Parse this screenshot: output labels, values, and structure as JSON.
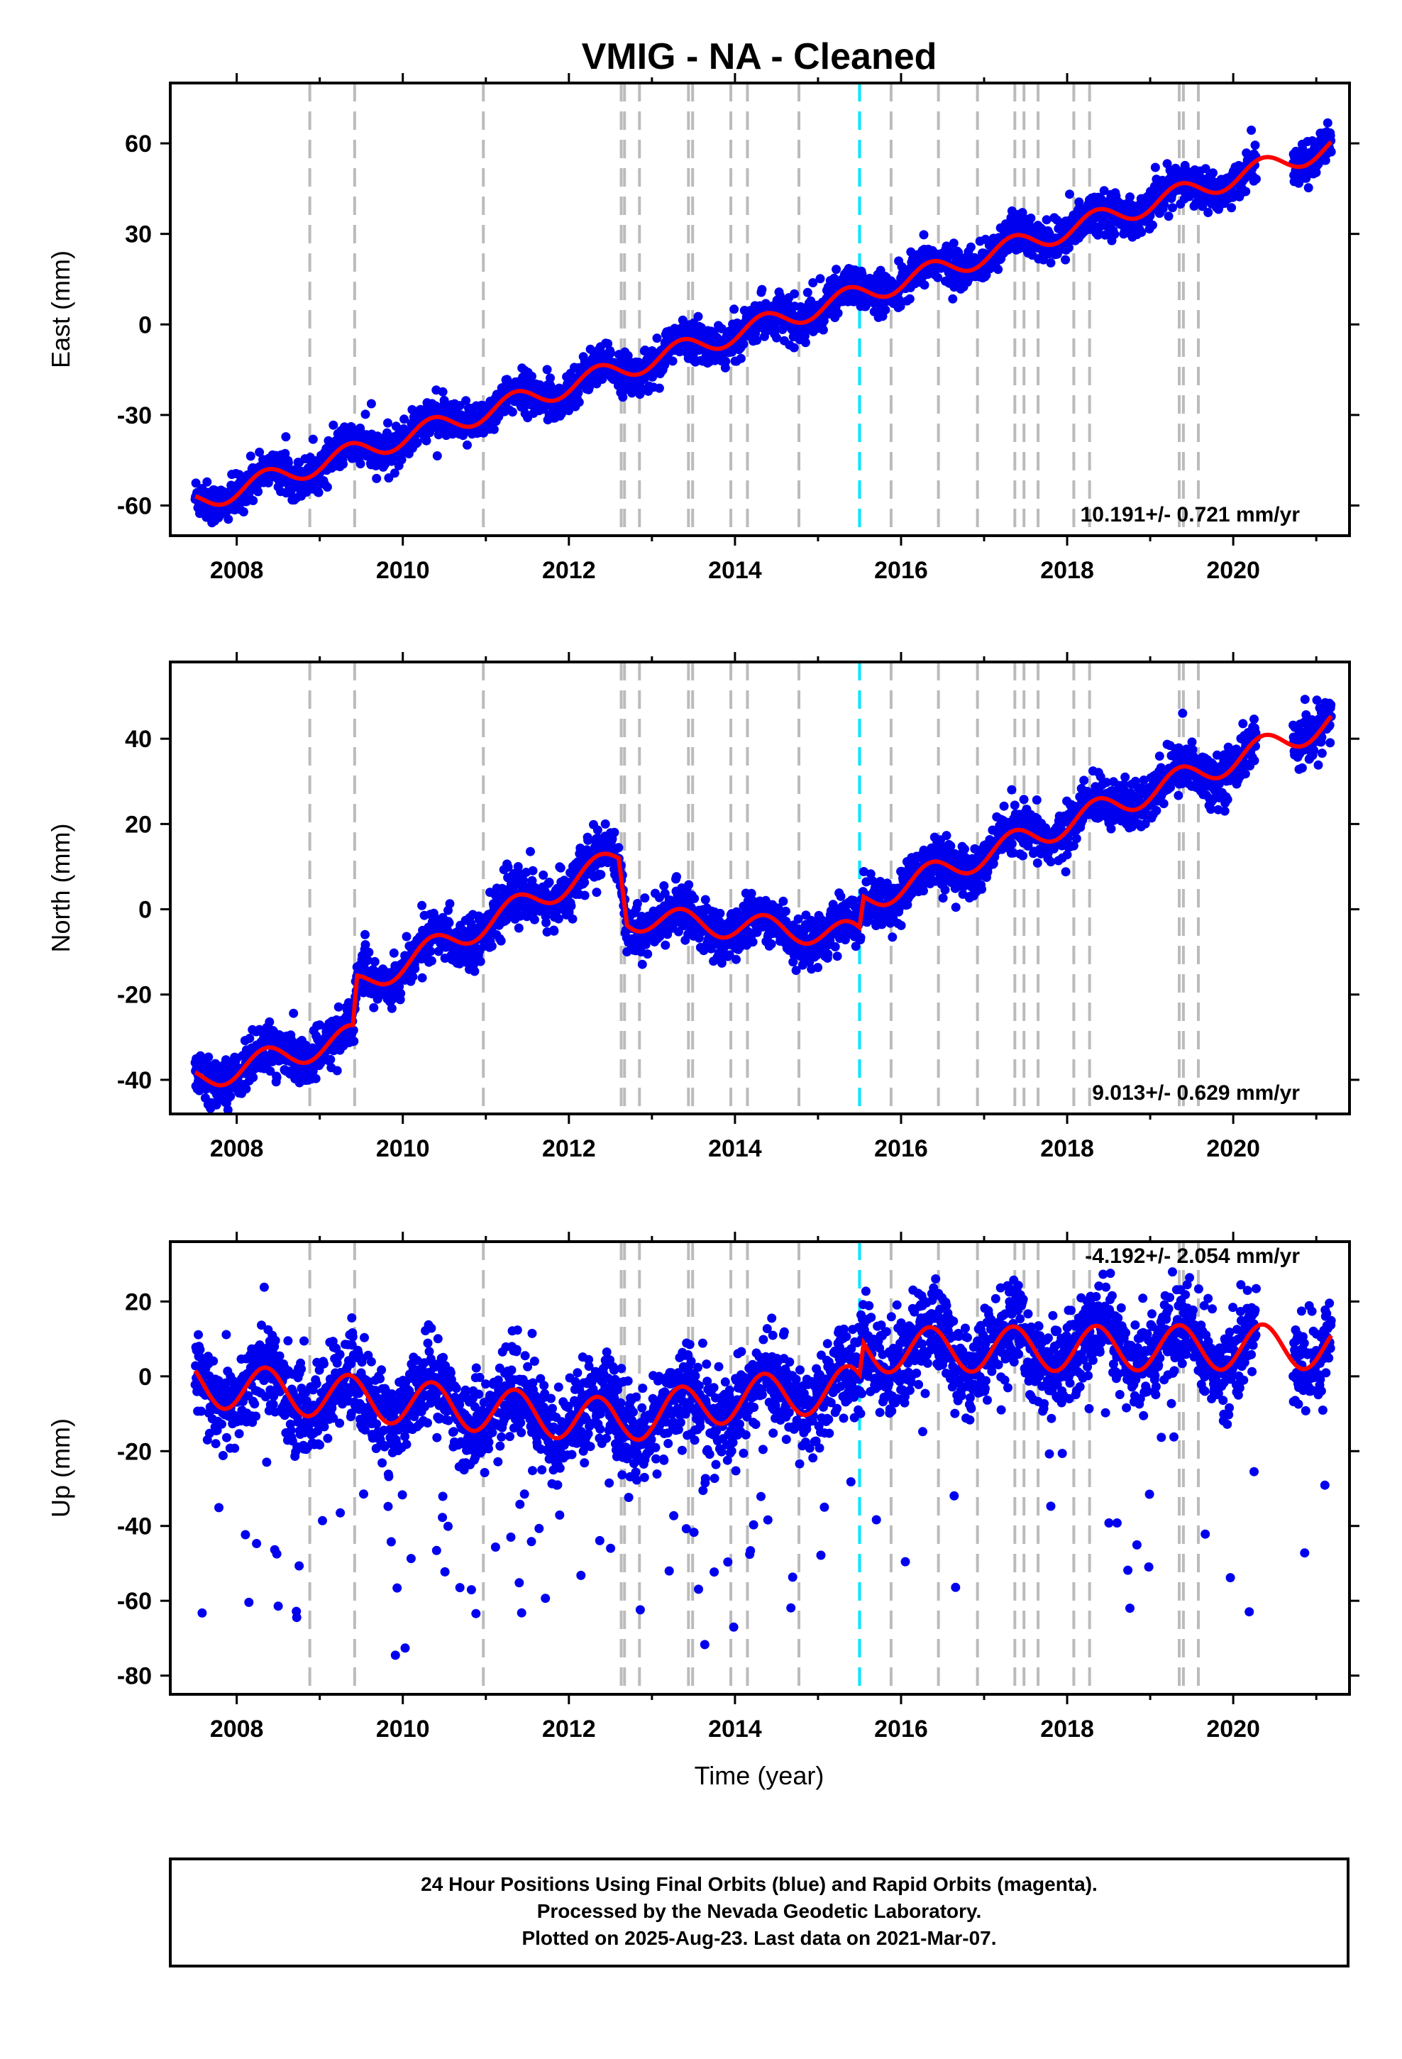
{
  "title": "VMIG  - NA - Cleaned",
  "colors": {
    "points": "#0000ee",
    "fit": "#ff0000",
    "event_line": "#bbbbbb",
    "highlight_line": "#00e5ff",
    "frame": "#000000"
  },
  "chart_data": [
    {
      "type": "scatter",
      "component": "East",
      "ylabel": "East (mm)",
      "xlabel": "",
      "xlim": [
        2007.2,
        2021.4
      ],
      "ylim": [
        -70,
        80
      ],
      "yticks": [
        -60,
        -30,
        0,
        30,
        60
      ],
      "xticks": [
        2008,
        2010,
        2012,
        2014,
        2016,
        2018,
        2020
      ],
      "rate_label": "10.191+/- 0.721 mm/yr",
      "rate_position": "bottom-right",
      "trend": {
        "x": [
          2007.5,
          2021.2
        ],
        "y": [
          -59,
          59
        ]
      },
      "seasonal_amplitude": 3.5,
      "scatter_sigma": 3.2,
      "grid": false
    },
    {
      "type": "scatter",
      "component": "North",
      "ylabel": "North (mm)",
      "xlabel": "",
      "xlim": [
        2007.2,
        2021.4
      ],
      "ylim": [
        -48,
        58
      ],
      "yticks": [
        -40,
        -20,
        0,
        20,
        40
      ],
      "xticks": [
        2008,
        2010,
        2012,
        2014,
        2016,
        2018,
        2020
      ],
      "rate_label": "9.013+/- 0.629 mm/yr",
      "rate_position": "bottom-right",
      "trend_points": {
        "x": [
          2007.5,
          2009.4,
          2009.45,
          2012.6,
          2012.7,
          2015.5,
          2015.55,
          2021.2
        ],
        "y": [
          -40,
          -30,
          -18,
          12,
          -2,
          -6,
          2,
          44
        ]
      },
      "seasonal_amplitude": 3,
      "scatter_sigma": 2.8,
      "grid": false
    },
    {
      "type": "scatter",
      "component": "Up",
      "ylabel": "Up (mm)",
      "xlabel": "Time (year)",
      "xlim": [
        2007.2,
        2021.4
      ],
      "ylim": [
        -85,
        36
      ],
      "yticks": [
        -80,
        -60,
        -40,
        -20,
        0,
        20
      ],
      "xticks": [
        2008,
        2010,
        2012,
        2014,
        2016,
        2018,
        2020
      ],
      "rate_label": "-4.192+/- 2.054 mm/yr",
      "rate_position": "top-right",
      "trend_points": {
        "x": [
          2007.5,
          2012.6,
          2014.0,
          2015.5,
          2015.55,
          2021.2
        ],
        "y": [
          -2,
          -12,
          -6,
          -3,
          7,
          8
        ]
      },
      "seasonal_amplitude": 6,
      "scatter_sigma": 6,
      "grid": false
    }
  ],
  "event_lines": [
    2008.88,
    2009.42,
    2010.97,
    2012.63,
    2012.67,
    2012.85,
    2013.44,
    2013.49,
    2013.95,
    2014.15,
    2014.77,
    2015.88,
    2016.45,
    2016.92,
    2017.37,
    2017.48,
    2017.65,
    2018.08,
    2018.27,
    2019.35,
    2019.4,
    2019.58
  ],
  "highlight_line": 2015.5,
  "footer": {
    "line1": "24 Hour Positions Using Final Orbits (blue) and Rapid Orbits (magenta).",
    "line2": "Processed by the Nevada Geodetic Laboratory.",
    "line3": "Plotted on 2025-Aug-23. Last data on 2021-Mar-07."
  }
}
